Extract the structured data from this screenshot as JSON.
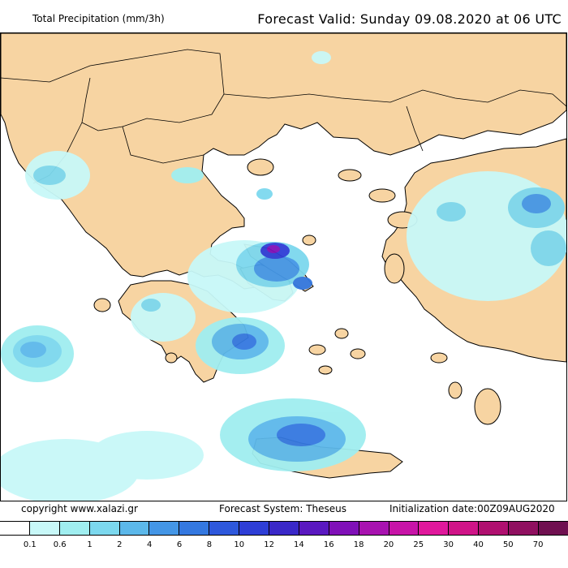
{
  "header": {
    "title": "Total Precipitation (mm/3h)",
    "valid": "Forecast Valid:  Sunday 09.08.2020 at 06 UTC"
  },
  "footer": {
    "copyright": "copyright www.xalazi.gr",
    "system": "Forecast System: Theseus",
    "init": "Initialization date:00Z09AUG2020"
  },
  "legend": {
    "labels": [
      "0.1",
      "0.6",
      "1",
      "2",
      "4",
      "6",
      "8",
      "10",
      "12",
      "14",
      "16",
      "18",
      "20",
      "25",
      "30",
      "40",
      "50",
      "70"
    ],
    "colors": [
      "#ffffff",
      "#c8f8f8",
      "#a0eef0",
      "#7cd8ee",
      "#5cb8ea",
      "#4496e6",
      "#3478e0",
      "#2e58dc",
      "#2e3ed6",
      "#3a28c8",
      "#5a18c0",
      "#8010b8",
      "#a812b0",
      "#c814a8",
      "#e0189c",
      "#d01488",
      "#b01070",
      "#901060",
      "#701050"
    ]
  },
  "map": {
    "land_color": "#f7d4a2",
    "sea_color": "#ffffff"
  }
}
